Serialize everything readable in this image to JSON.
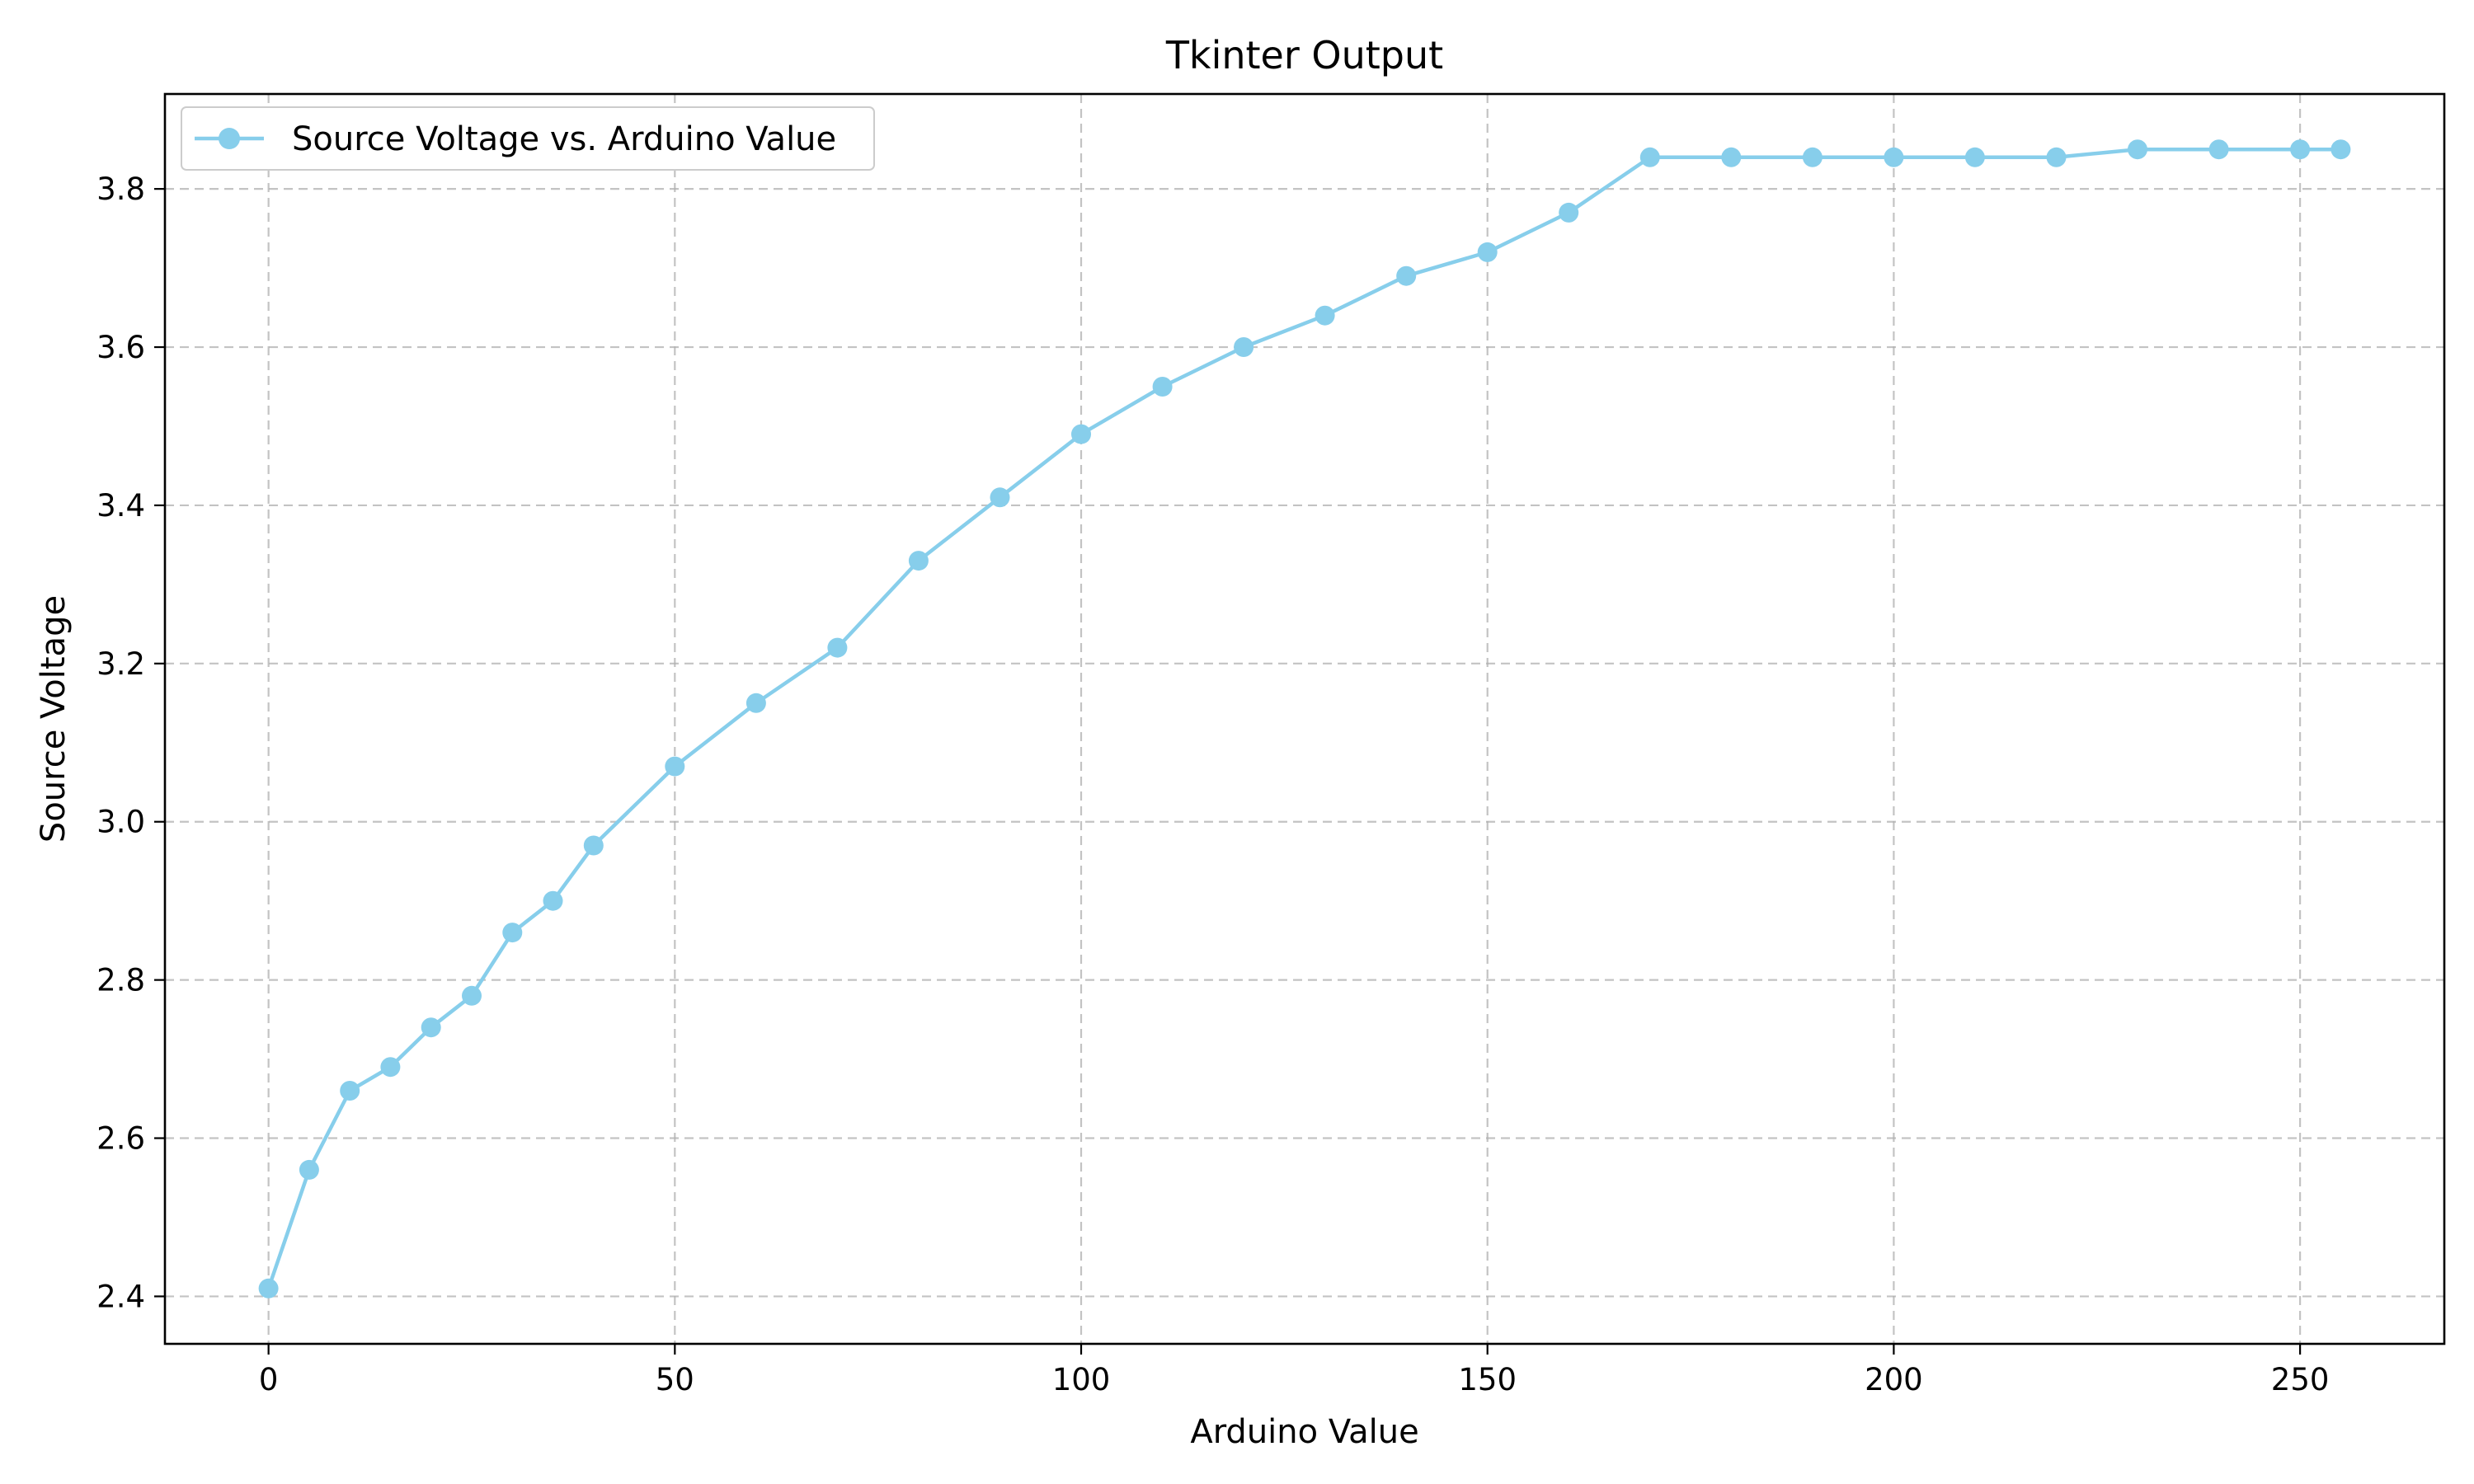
{
  "chart_data": {
    "type": "line",
    "title": "Tkinter Output",
    "xlabel": "Arduino Value",
    "ylabel": "Source Voltage",
    "xlim": [
      -12.75,
      267.75
    ],
    "ylim": [
      2.34,
      3.92
    ],
    "xticks": [
      0,
      50,
      100,
      150,
      200,
      250
    ],
    "xtick_labels": [
      "0",
      "50",
      "100",
      "150",
      "200",
      "250"
    ],
    "yticks": [
      2.4,
      2.6,
      2.8,
      3.0,
      3.2,
      3.4,
      3.6,
      3.8
    ],
    "ytick_labels": [
      "2.4",
      "2.6",
      "2.8",
      "3.0",
      "3.2",
      "3.4",
      "3.6",
      "3.8"
    ],
    "grid": true,
    "legend_position": "top-left",
    "series": [
      {
        "name": "Source Voltage vs. Arduino Value",
        "color": "#87ceeb",
        "marker": "circle",
        "x": [
          0,
          5,
          10,
          15,
          20,
          25,
          30,
          35,
          40,
          50,
          60,
          70,
          80,
          90,
          100,
          110,
          120,
          130,
          140,
          150,
          160,
          170,
          180,
          190,
          200,
          210,
          220,
          230,
          240,
          250,
          255
        ],
        "y": [
          2.41,
          2.56,
          2.66,
          2.69,
          2.74,
          2.78,
          2.86,
          2.9,
          2.97,
          3.07,
          3.15,
          3.22,
          3.33,
          3.41,
          3.49,
          3.55,
          3.6,
          3.64,
          3.69,
          3.72,
          3.77,
          3.84,
          3.84,
          3.84,
          3.84,
          3.84,
          3.84,
          3.85,
          3.85,
          3.85,
          3.85
        ]
      }
    ]
  }
}
